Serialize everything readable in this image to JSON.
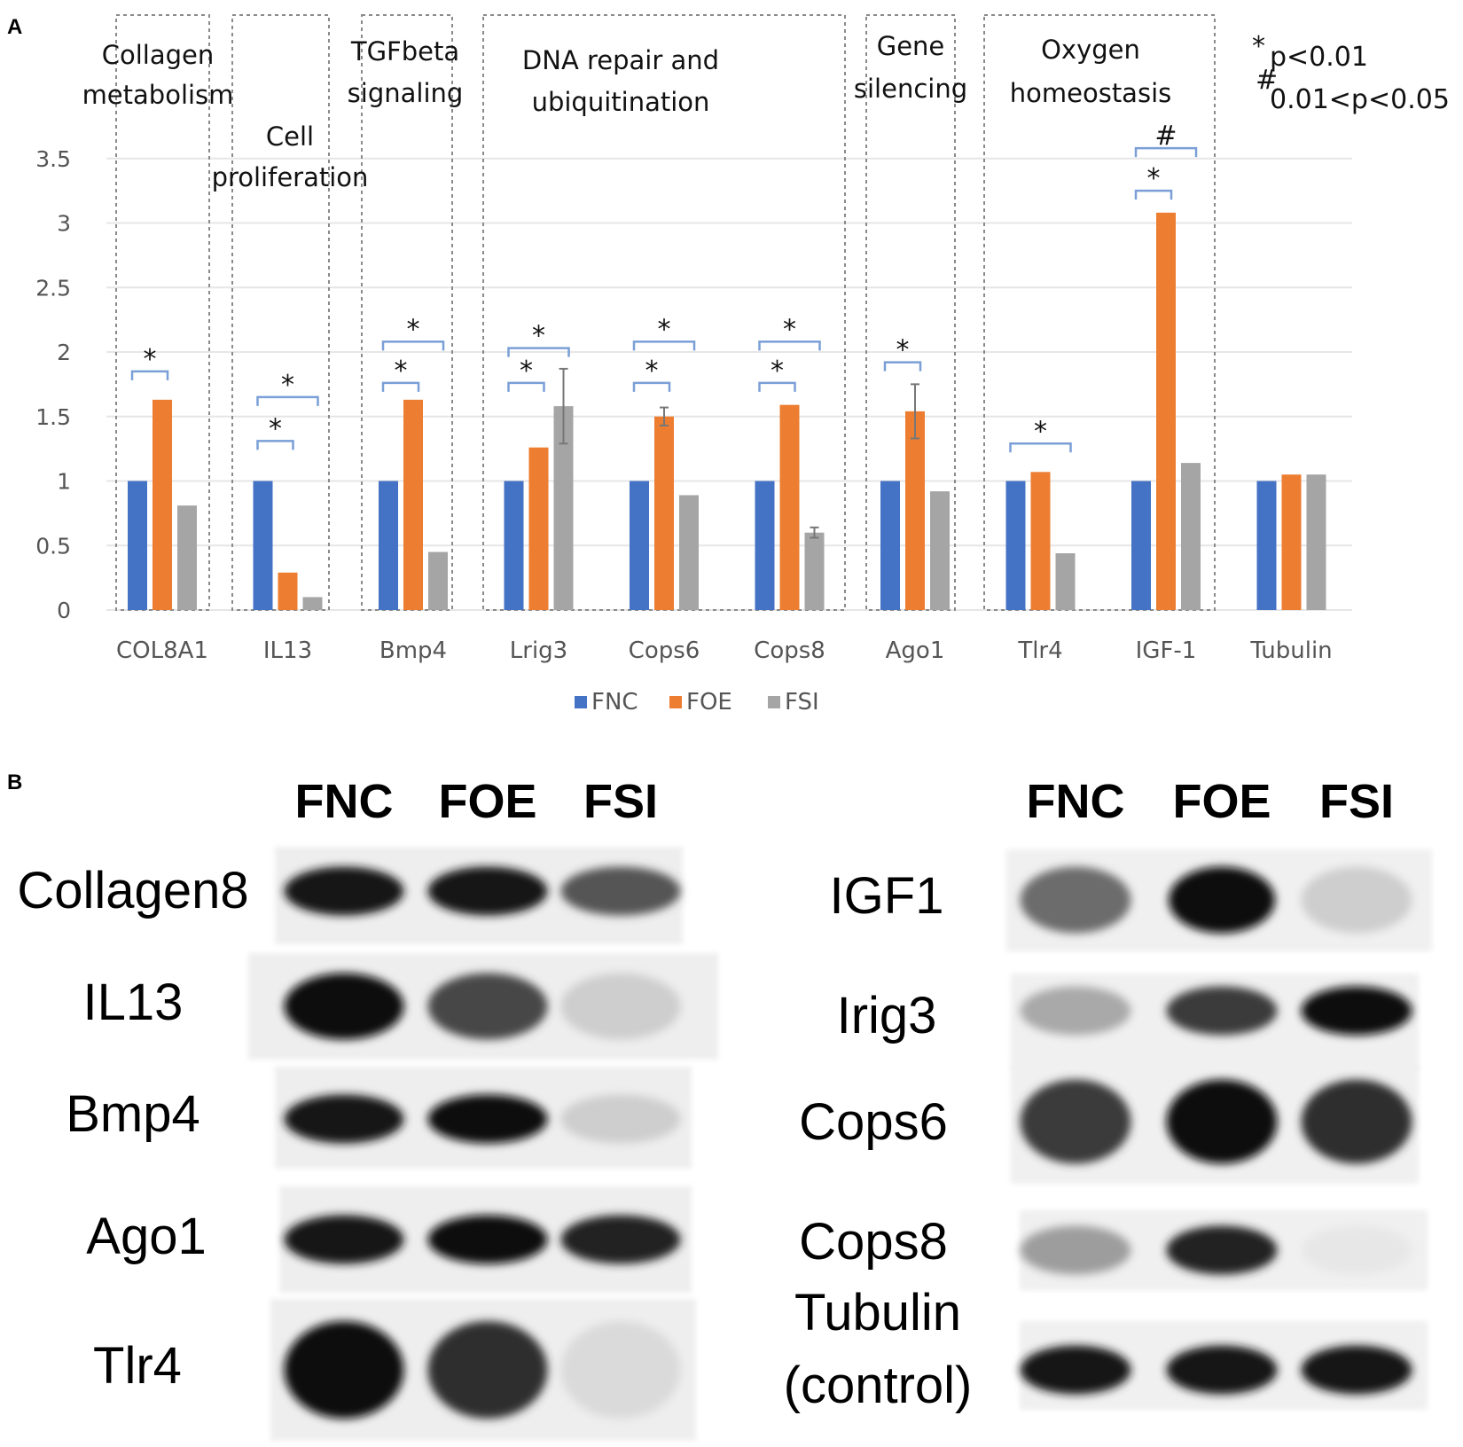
{
  "panel_a_letter": "A",
  "panel_b_letter": "B",
  "chart_data": {
    "type": "bar",
    "categories": [
      "COL8A1",
      "IL13",
      "Bmp4",
      "Lrig3",
      "Cops6",
      "Cops8",
      "Ago1",
      "Tlr4",
      "IGF-1",
      "Tubulin"
    ],
    "series": [
      {
        "name": "FNC",
        "color": "#4472C4",
        "values": [
          1,
          1,
          1,
          1,
          1,
          1,
          1,
          1,
          1,
          1
        ],
        "errors": [
          0,
          0,
          0,
          0,
          0,
          0,
          0,
          0,
          0,
          0
        ]
      },
      {
        "name": "FOE",
        "color": "#ED7D31",
        "values": [
          1.63,
          0.29,
          1.63,
          1.26,
          1.5,
          1.59,
          1.54,
          1.07,
          3.08,
          1.05
        ],
        "errors": [
          0,
          0,
          0,
          0,
          0.07,
          0,
          0.21,
          0,
          0,
          0
        ]
      },
      {
        "name": "FSI",
        "color": "#A5A5A5",
        "values": [
          0.81,
          0.1,
          0.45,
          1.58,
          0.89,
          0.6,
          0.92,
          0.44,
          1.14,
          1.05
        ],
        "errors": [
          0,
          0,
          0,
          0.29,
          0,
          0.04,
          0,
          0,
          0,
          0
        ]
      }
    ],
    "ylim": [
      0,
      3.5
    ],
    "yticks": [
      "0",
      "0.5",
      "1",
      "1.5",
      "2",
      "2.5",
      "3",
      "3.5"
    ],
    "ytick_values": [
      0,
      0.5,
      1,
      1.5,
      2,
      2.5,
      3,
      3.5
    ],
    "grid": true,
    "legend_position": "bottom",
    "groups": [
      {
        "label_lines": [
          "Collagen",
          "metabolism"
        ]
      },
      {
        "label_lines": [
          "Cell",
          "proliferation"
        ]
      },
      {
        "label_lines": [
          "TGFbeta",
          "signaling"
        ]
      },
      {
        "label_lines": [
          "DNA repair and",
          "ubiquitination"
        ]
      },
      {
        "label_lines": [
          "Gene",
          "silencing"
        ]
      },
      {
        "label_lines": [
          "Oxygen",
          "homeostasis"
        ]
      }
    ],
    "significance_brackets": [
      {
        "category": "COL8A1",
        "from": "FNC",
        "to": "FOE",
        "marker": "*",
        "level": 1.85
      },
      {
        "category": "IL13",
        "from": "FNC",
        "to": "FOE",
        "marker": "*",
        "level": 1.31
      },
      {
        "category": "IL13",
        "from": "FNC",
        "to": "FSI",
        "marker": "*",
        "level": 1.65
      },
      {
        "category": "Bmp4",
        "from": "FNC",
        "to": "FOE",
        "marker": "*",
        "level": 1.76
      },
      {
        "category": "Bmp4",
        "from": "FNC",
        "to": "FSI",
        "marker": "*",
        "level": 2.08
      },
      {
        "category": "Lrig3",
        "from": "FNC",
        "to": "FOE",
        "marker": "*",
        "level": 1.76
      },
      {
        "category": "Lrig3",
        "from": "FNC",
        "to": "FSI",
        "marker": "*",
        "level": 2.03
      },
      {
        "category": "Cops6",
        "from": "FNC",
        "to": "FOE",
        "marker": "*",
        "level": 1.76
      },
      {
        "category": "Cops6",
        "from": "FNC",
        "to": "FSI",
        "marker": "*",
        "level": 2.08
      },
      {
        "category": "Cops8",
        "from": "FNC",
        "to": "FOE",
        "marker": "*",
        "level": 1.76
      },
      {
        "category": "Cops8",
        "from": "FNC",
        "to": "FSI",
        "marker": "*",
        "level": 2.08
      },
      {
        "category": "Ago1",
        "from": "FNC",
        "to": "FOE",
        "marker": "*",
        "level": 1.92
      },
      {
        "category": "Tlr4",
        "from": "FNC",
        "to": "FSI",
        "marker": "*",
        "level": 1.29
      },
      {
        "category": "IGF-1",
        "from": "FNC",
        "to": "FOE",
        "marker": "*",
        "level": 3.25
      },
      {
        "category": "IGF-1",
        "from": "FNC",
        "to": "FSI",
        "marker": "#",
        "level": 3.58
      }
    ]
  },
  "significance_key": {
    "line1_symbol": "*",
    "line1_text": "p<0.01",
    "line2_symbol": "#",
    "line2_text": "0.01<p<0.05"
  },
  "western_blot": {
    "left": {
      "headers": [
        "FNC",
        "FOE",
        "FSI"
      ],
      "rows": [
        {
          "label": "Collagen8",
          "intensity": [
            0.95,
            0.95,
            0.7
          ]
        },
        {
          "label": "IL13",
          "intensity": [
            1.0,
            0.75,
            0.2
          ]
        },
        {
          "label": "Bmp4",
          "intensity": [
            0.95,
            0.98,
            0.2
          ]
        },
        {
          "label": "Ago1",
          "intensity": [
            0.95,
            0.98,
            0.9
          ]
        },
        {
          "label": "Tlr4",
          "intensity": [
            0.98,
            0.85,
            0.15
          ]
        }
      ]
    },
    "right": {
      "headers": [
        "FNC",
        "FOE",
        "FSI"
      ],
      "rows": [
        {
          "label_lines": [
            "IGF1"
          ],
          "intensity": [
            0.6,
            1.0,
            0.2
          ]
        },
        {
          "label_lines": [
            "Irig3"
          ],
          "intensity": [
            0.35,
            0.8,
            1.0
          ]
        },
        {
          "label_lines": [
            "Cops6"
          ],
          "intensity": [
            0.8,
            1.0,
            0.85
          ]
        },
        {
          "label_lines": [
            "Cops8"
          ],
          "intensity": [
            0.4,
            0.9,
            0.1
          ]
        },
        {
          "label_lines": [
            "Tubulin",
            "(control)"
          ],
          "intensity": [
            0.95,
            0.95,
            0.95
          ]
        }
      ]
    }
  }
}
